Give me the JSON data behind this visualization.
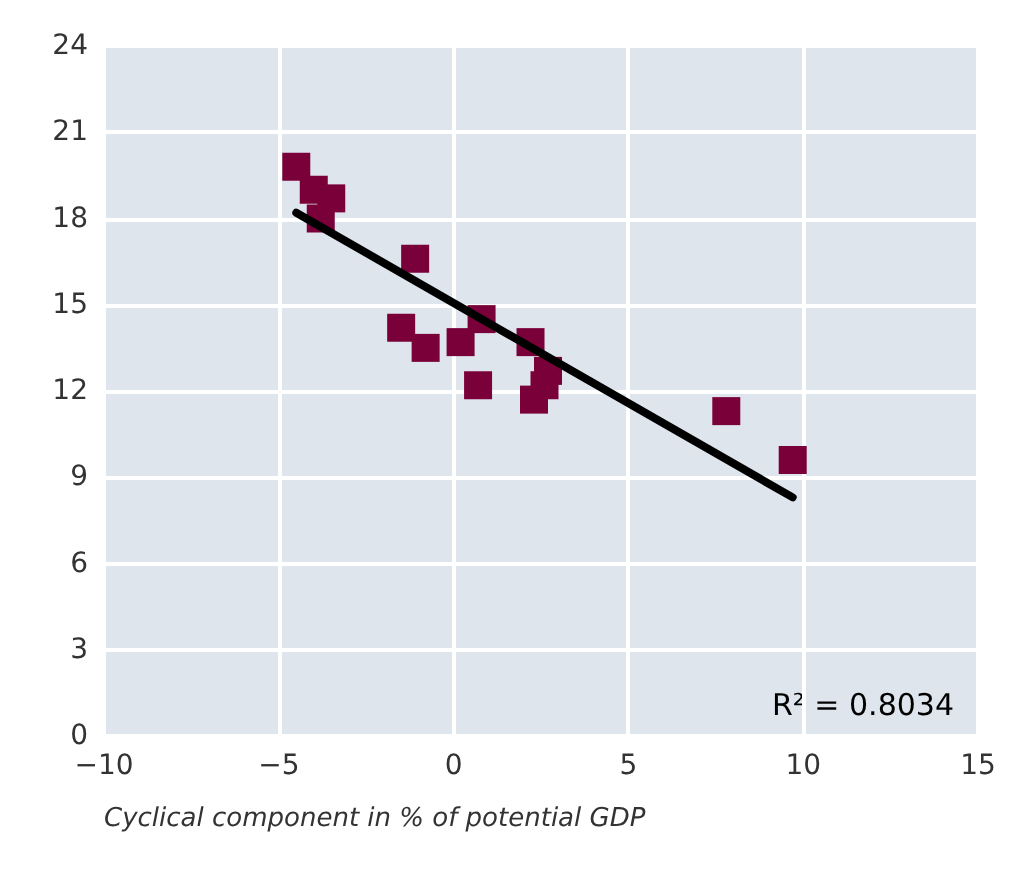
{
  "chart_data": {
    "type": "scatter",
    "xlabel": "Cyclical component in % of potential GDP",
    "series": [
      {
        "type": "scatter",
        "color": "#7a0039",
        "marker": "square",
        "x": [
          -4.5,
          -4.0,
          -3.5,
          -3.8,
          -1.1,
          -1.5,
          -0.8,
          0.2,
          0.8,
          0.7,
          2.2,
          2.3,
          2.6,
          2.7,
          7.8,
          9.7
        ],
        "values": [
          19.8,
          19.0,
          18.7,
          18.0,
          16.6,
          14.2,
          13.5,
          13.7,
          14.5,
          12.2,
          13.7,
          11.7,
          12.2,
          12.7,
          11.3,
          9.6
        ]
      },
      {
        "type": "line",
        "color": "#000000",
        "marker": "none",
        "x": [
          -4.5,
          9.7
        ],
        "values": [
          18.2,
          8.3
        ]
      }
    ],
    "xlim": [
      -10,
      15
    ],
    "xticks": [
      {
        "value": -10,
        "label": "−10"
      },
      {
        "value": -5,
        "label": "−5"
      },
      0,
      5,
      10,
      15
    ],
    "ylim": [
      0,
      24
    ],
    "yticks": [
      0,
      3,
      6,
      9,
      12,
      15,
      18,
      21,
      24
    ],
    "grid": true,
    "annotations": [
      "R² = 0.8034"
    ]
  }
}
